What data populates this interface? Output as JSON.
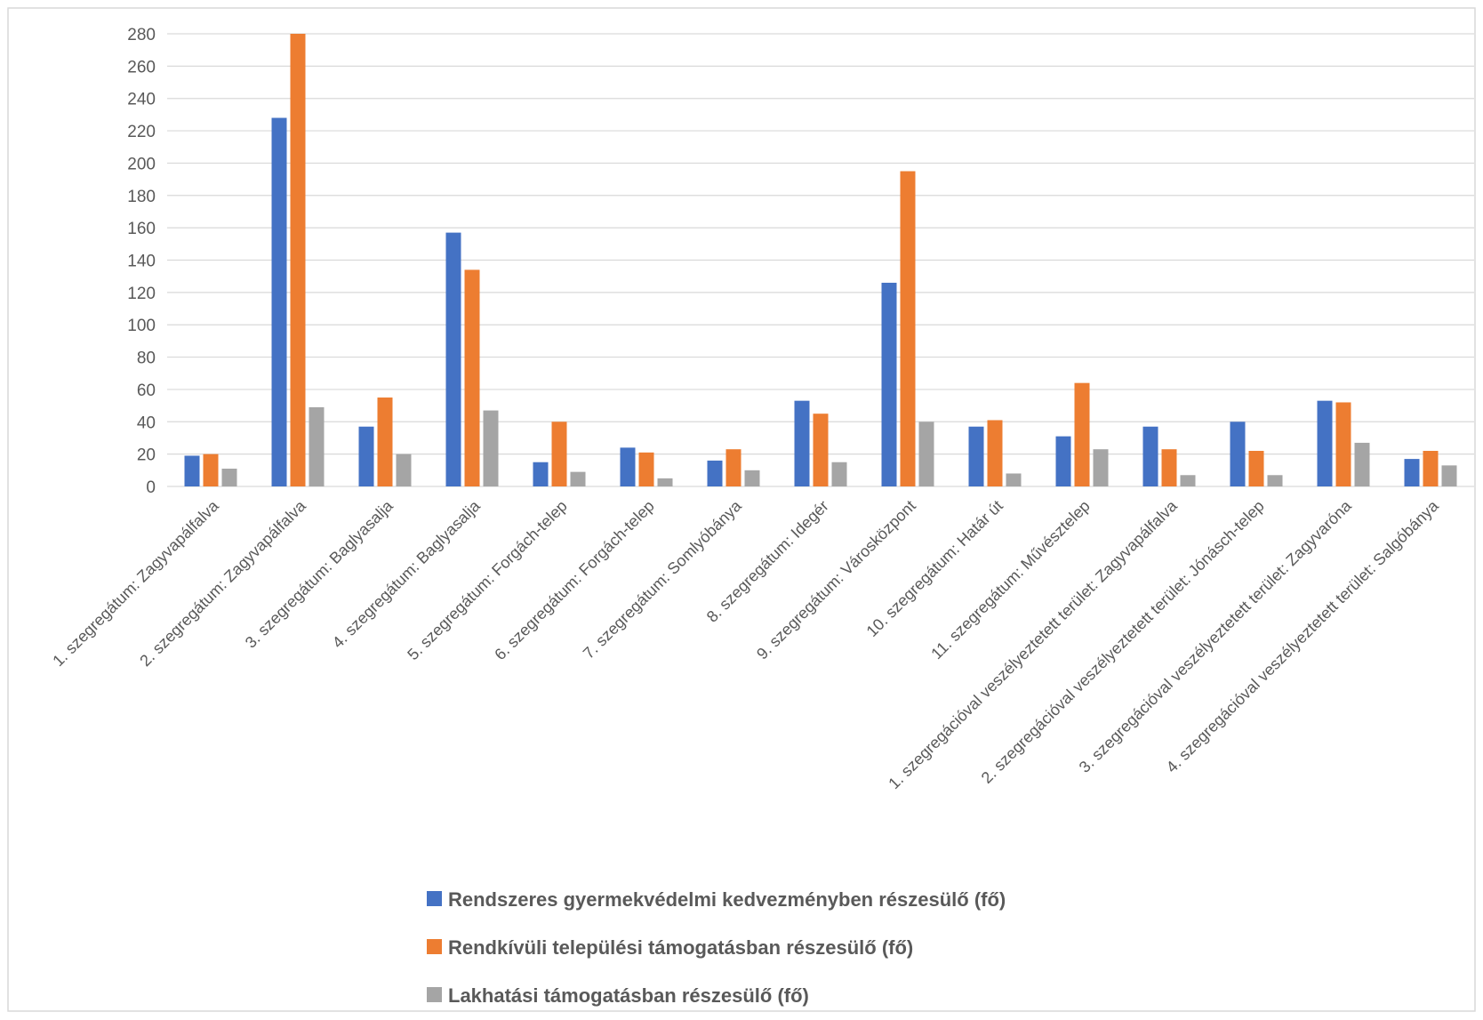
{
  "chart_data": {
    "type": "bar",
    "title": "",
    "xlabel": "",
    "ylabel": "",
    "ylim": [
      0,
      280
    ],
    "yticks": [
      0,
      20,
      40,
      60,
      80,
      100,
      120,
      140,
      160,
      180,
      200,
      220,
      240,
      260,
      280
    ],
    "grid": true,
    "legend_position": "bottom",
    "categories": [
      "1. szegregátum: Zagyvapálfalva",
      "2. szegregátum: Zagyvapálfalva",
      "3. szegregátum: Baglyasalja",
      "4. szegregátum: Baglyasalja",
      "5. szegregátum: Forgách-telep",
      "6. szegregátum: Forgách-telep",
      "7. szegregátum: Somlyóbánya",
      "8. szegregátum: Idegér",
      "9. szegregátum: Városközpont",
      "10.  szegregátum: Határ út",
      "11. szegregátum: Művésztelep",
      "1. szegregációval veszélyeztetett terület: Zagyvapálfalva",
      "2. szegregációval veszélyeztetett terület: Jónásch-telep",
      "3. szegregációval veszélyeztetett terület: Zagyvaróna",
      "4. szegregációval veszélyeztetett terület: Salgóbánya"
    ],
    "series": [
      {
        "name": "Rendszeres gyermekvédelmi kedvezményben részesülő (fő)",
        "color": "#4472C4",
        "values": [
          19,
          228,
          37,
          157,
          15,
          24,
          16,
          53,
          126,
          37,
          31,
          37,
          40,
          53,
          17
        ]
      },
      {
        "name": "Rendkívüli települési támogatásban részesülő (fő)",
        "color": "#ED7D31",
        "values": [
          20,
          281,
          55,
          134,
          40,
          21,
          23,
          45,
          195,
          41,
          64,
          23,
          22,
          52,
          22
        ]
      },
      {
        "name": "Lakhatási támogatásban részesülő (fő)",
        "color": "#A5A5A5",
        "values": [
          11,
          49,
          20,
          47,
          9,
          5,
          10,
          15,
          40,
          8,
          23,
          7,
          7,
          27,
          13
        ]
      }
    ]
  }
}
